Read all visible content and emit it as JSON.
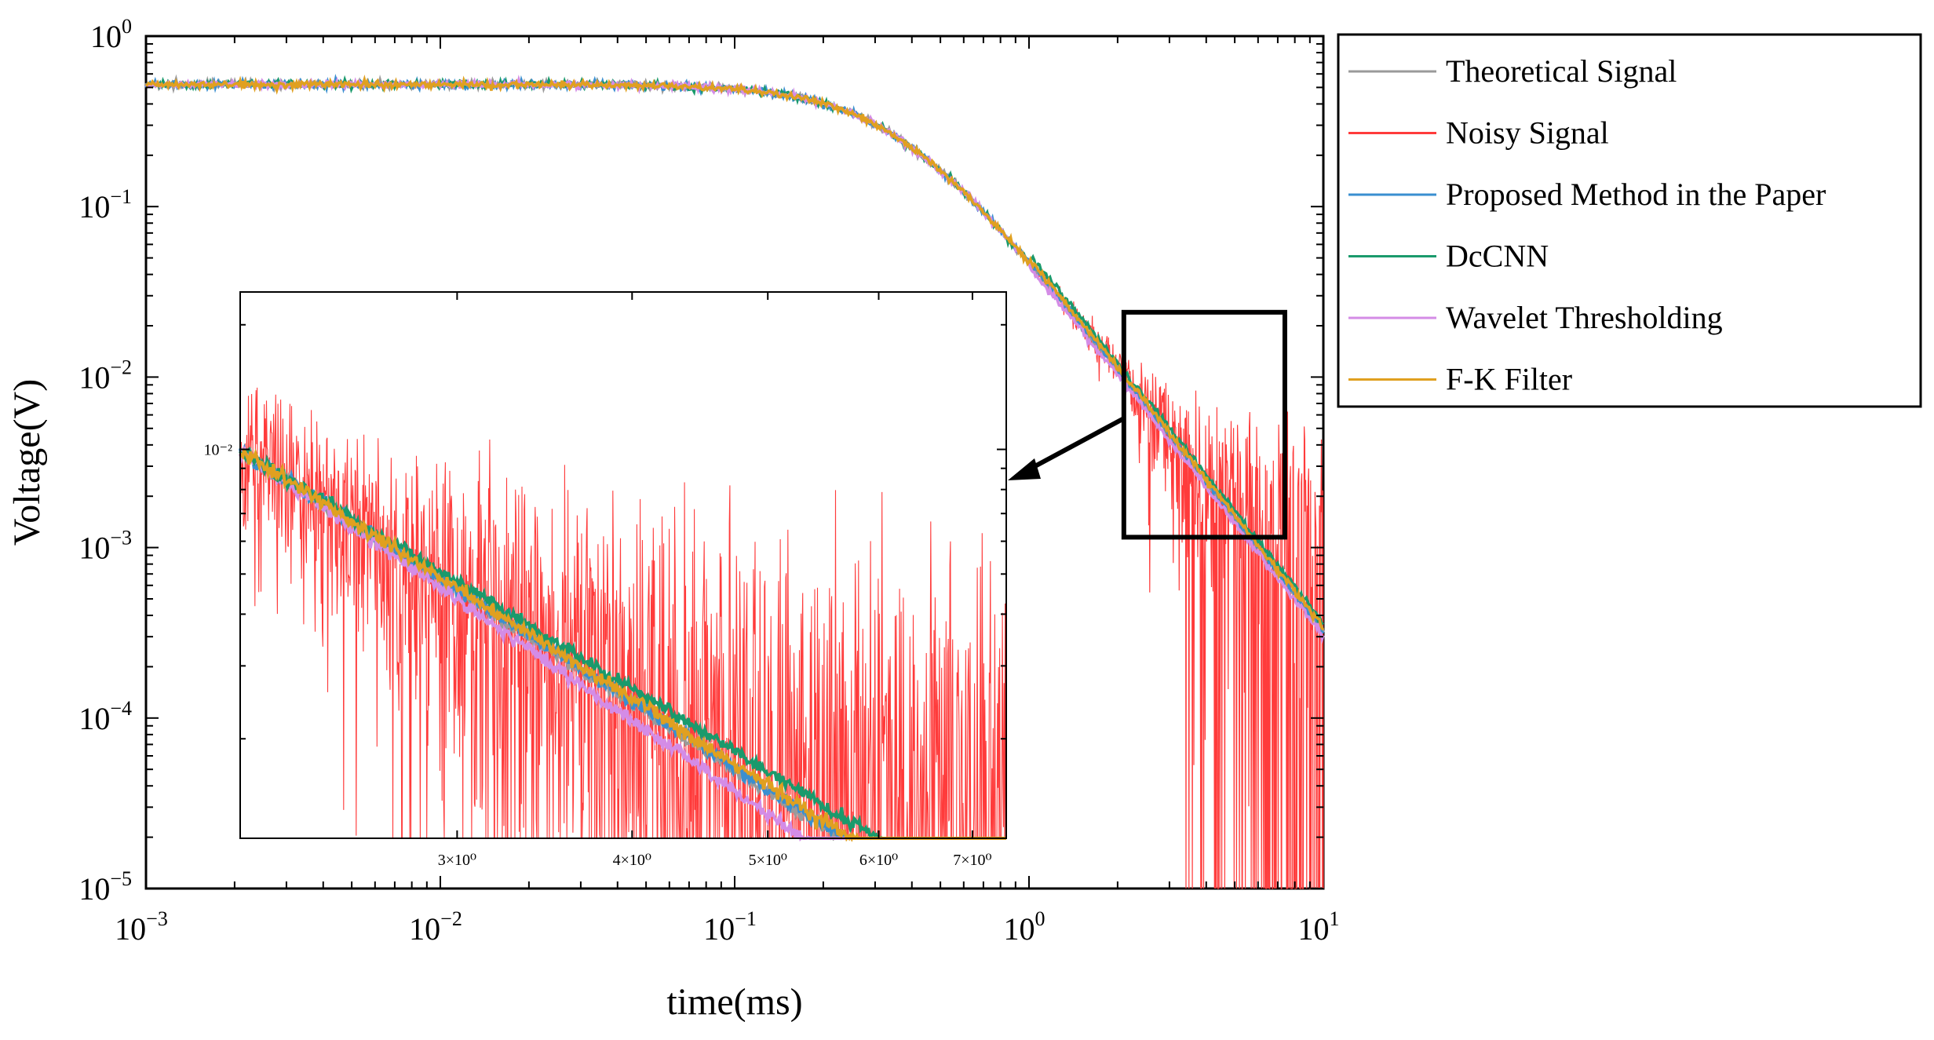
{
  "chart_data": {
    "type": "line",
    "xlabel": "time(ms)",
    "ylabel": "Voltage(V)",
    "xscale": "log",
    "yscale": "log",
    "xlim": [
      0.001,
      10
    ],
    "ylim": [
      1e-05,
      1
    ],
    "x_tick_labels": [
      {
        "base": "10",
        "exp": "−3"
      },
      {
        "base": "10",
        "exp": "−2"
      },
      {
        "base": "10",
        "exp": "−1"
      },
      {
        "base": "10",
        "exp": "0"
      },
      {
        "base": "10",
        "exp": "1"
      }
    ],
    "y_tick_labels": [
      {
        "base": "10",
        "exp": "0"
      },
      {
        "base": "10",
        "exp": "−1"
      },
      {
        "base": "10",
        "exp": "−2"
      },
      {
        "base": "10",
        "exp": "−3"
      },
      {
        "base": "10",
        "exp": "−4"
      },
      {
        "base": "10",
        "exp": "−5"
      }
    ],
    "legend_position": "outside-right-top",
    "series": [
      {
        "name": "Theoretical Signal",
        "color": "#9a9a9a"
      },
      {
        "name": "Noisy Signal",
        "color": "#ff3b3b"
      },
      {
        "name": "Proposed Method in the Paper",
        "color": "#3a8fd0"
      },
      {
        "name": "DcCNN",
        "color": "#1a9a6c"
      },
      {
        "name": "Wavelet Thresholding",
        "color": "#d48ce6"
      },
      {
        "name": "F-K Filter",
        "color": "#e0a020"
      }
    ],
    "signal_model": {
      "plateau": 0.52,
      "knee": 0.35,
      "late_slope": -2.2,
      "noise_std": 0.001
    },
    "zoom_box": {
      "xlim": [
        2.1,
        7.4
      ],
      "ylim": [
        0.00115,
        0.024
      ]
    },
    "inset": {
      "xlim": [
        2.1,
        7.4
      ],
      "ylim": [
        0.00115,
        0.024
      ],
      "x_tick_labels": [
        "3×10⁰",
        "4×10⁰",
        "5×10⁰",
        "6×10⁰",
        "7×10⁰"
      ],
      "x_tick_values": [
        3,
        4,
        5,
        6,
        7
      ],
      "y_tick_label": "10⁻²",
      "y_tick_value": 0.01
    }
  }
}
